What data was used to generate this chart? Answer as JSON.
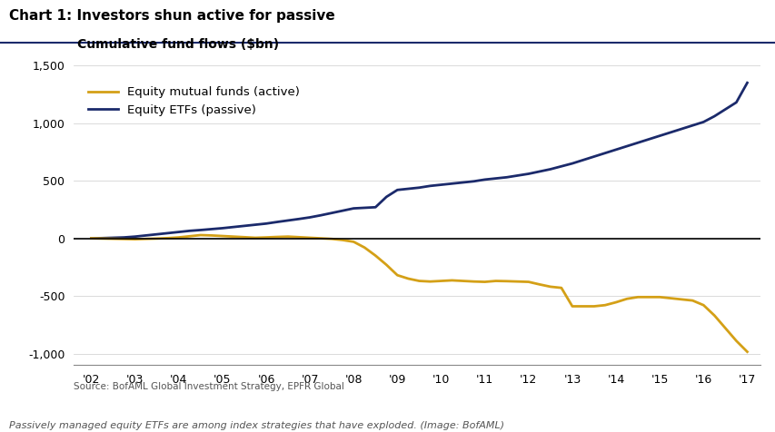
{
  "title": "Chart 1: Investors shun active for passive",
  "ylabel": "Cumulative fund flows ($bn)",
  "source_text": "Source: BofAML Global Investment Strategy, EPFR Global",
  "caption_text": "Passively managed equity ETFs are among index strategies that have exploded. (Image: BofAML)",
  "legend_active": "Equity mutual funds (active)",
  "legend_passive": "Equity ETFs (passive)",
  "color_active": "#D4A017",
  "color_passive": "#1B2A6B",
  "background_color": "#ffffff",
  "title_color": "#1B2A6B",
  "ylim": [
    -1100,
    1600
  ],
  "yticks": [
    -1000,
    -500,
    0,
    500,
    1000,
    1500
  ],
  "ytick_labels": [
    "-1,000",
    "-500",
    "0",
    "500",
    "1,000",
    "1,500"
  ],
  "xtick_labels": [
    "'02",
    "'03",
    "'04",
    "'05",
    "'06",
    "'07",
    "'08",
    "'09",
    "'10",
    "'11",
    "'12",
    "'13",
    "'14",
    "'15",
    "'16",
    "'17"
  ],
  "passive_x": [
    2002.0,
    2002.25,
    2002.5,
    2002.75,
    2003.0,
    2003.25,
    2003.5,
    2003.75,
    2004.0,
    2004.25,
    2004.5,
    2004.75,
    2005.0,
    2005.25,
    2005.5,
    2005.75,
    2006.0,
    2006.25,
    2006.5,
    2006.75,
    2007.0,
    2007.25,
    2007.5,
    2007.75,
    2008.0,
    2008.25,
    2008.5,
    2008.75,
    2009.0,
    2009.25,
    2009.5,
    2009.75,
    2010.0,
    2010.25,
    2010.5,
    2010.75,
    2011.0,
    2011.25,
    2011.5,
    2011.75,
    2012.0,
    2012.25,
    2012.5,
    2012.75,
    2013.0,
    2013.25,
    2013.5,
    2013.75,
    2014.0,
    2014.25,
    2014.5,
    2014.75,
    2015.0,
    2015.25,
    2015.5,
    2015.75,
    2016.0,
    2016.25,
    2016.5,
    2016.75,
    2017.0
  ],
  "passive_y": [
    0,
    2,
    5,
    8,
    15,
    25,
    35,
    45,
    55,
    65,
    72,
    80,
    88,
    98,
    108,
    118,
    128,
    142,
    155,
    168,
    182,
    200,
    220,
    240,
    260,
    265,
    270,
    360,
    420,
    430,
    440,
    455,
    465,
    475,
    485,
    495,
    510,
    520,
    530,
    545,
    560,
    580,
    600,
    625,
    650,
    680,
    710,
    740,
    770,
    800,
    830,
    860,
    890,
    920,
    950,
    980,
    1010,
    1060,
    1120,
    1180,
    1350
  ],
  "active_x": [
    2002.0,
    2002.25,
    2002.5,
    2002.75,
    2003.0,
    2003.25,
    2003.5,
    2003.75,
    2004.0,
    2004.25,
    2004.5,
    2004.75,
    2005.0,
    2005.25,
    2005.5,
    2005.75,
    2006.0,
    2006.25,
    2006.5,
    2006.75,
    2007.0,
    2007.25,
    2007.5,
    2007.75,
    2008.0,
    2008.25,
    2008.5,
    2008.75,
    2009.0,
    2009.25,
    2009.5,
    2009.75,
    2010.0,
    2010.25,
    2010.5,
    2010.75,
    2011.0,
    2011.25,
    2011.5,
    2011.75,
    2012.0,
    2012.25,
    2012.5,
    2012.75,
    2013.0,
    2013.25,
    2013.5,
    2013.75,
    2014.0,
    2014.25,
    2014.5,
    2014.75,
    2015.0,
    2015.25,
    2015.5,
    2015.75,
    2016.0,
    2016.25,
    2016.5,
    2016.75,
    2017.0
  ],
  "active_y": [
    0,
    -2,
    -4,
    -6,
    -8,
    -5,
    -2,
    2,
    8,
    18,
    28,
    25,
    20,
    15,
    10,
    5,
    8,
    12,
    15,
    10,
    5,
    0,
    -5,
    -15,
    -30,
    -80,
    -150,
    -230,
    -320,
    -350,
    -370,
    -375,
    -370,
    -365,
    -370,
    -375,
    -378,
    -370,
    -372,
    -375,
    -378,
    -400,
    -420,
    -430,
    -590,
    -590,
    -590,
    -580,
    -555,
    -525,
    -510,
    -510,
    -510,
    -520,
    -530,
    -540,
    -580,
    -670,
    -780,
    -890,
    -985
  ],
  "line_width": 2.0
}
